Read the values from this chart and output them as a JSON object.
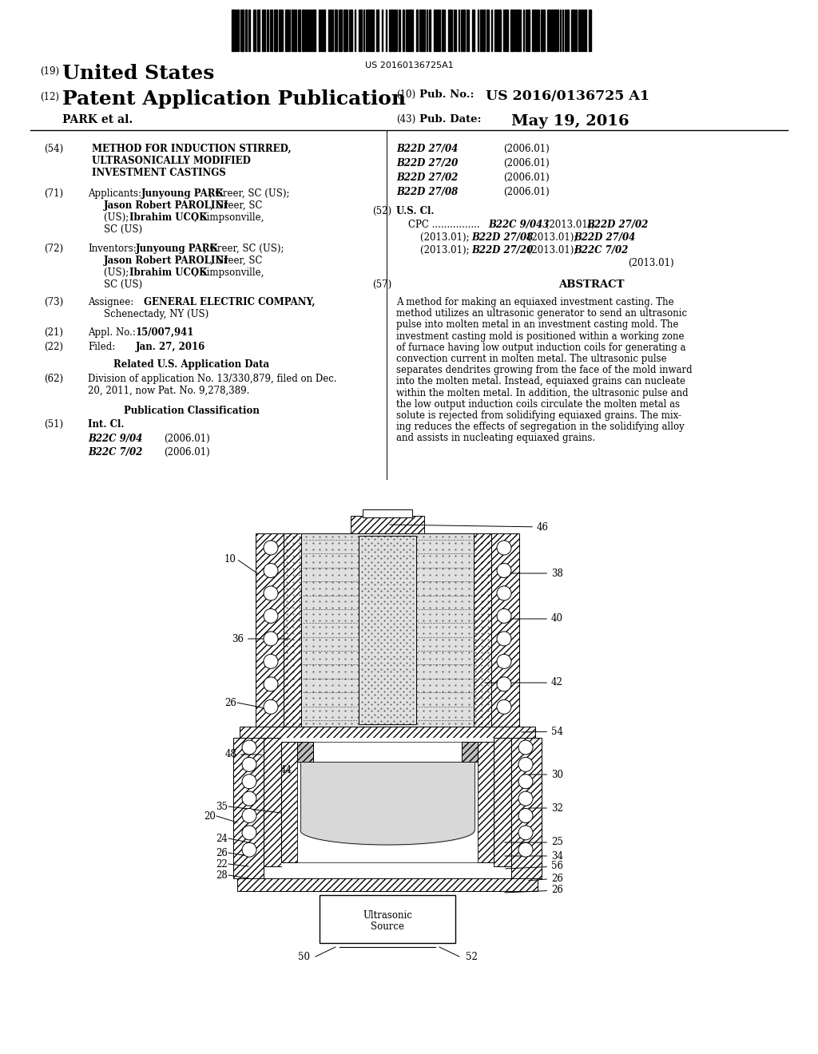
{
  "bg_color": "#ffffff",
  "barcode_text": "US 20160136725A1",
  "abstract_lines": [
    "A method for making an equiaxed investment casting. The",
    "method utilizes an ultrasonic generator to send an ultrasonic",
    "pulse into molten metal in an investment casting mold. The",
    "investment casting mold is positioned within a working zone",
    "of furnace having low output induction coils for generating a",
    "convection current in molten metal. The ultrasonic pulse",
    "separates dendrites growing from the face of the mold inward",
    "into the molten metal. Instead, equiaxed grains can nucleate",
    "within the molten metal. In addition, the ultrasonic pulse and",
    "the low output induction coils circulate the molten metal as",
    "solute is rejected from solidifying equiaxed grains. The mix-",
    "ing reduces the effects of segregation in the solidifying alloy",
    "and assists in nucleating equiaxed grains."
  ]
}
